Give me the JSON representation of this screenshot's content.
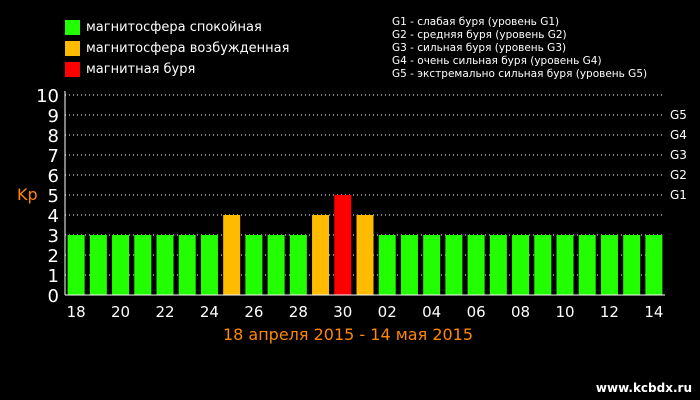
{
  "legend": {
    "items": [
      {
        "label": "магнитосфера спокойная",
        "color": "#22ff00"
      },
      {
        "label": "магнитосфера возбужденная",
        "color": "#ffbb00"
      },
      {
        "label": "магнитная буря",
        "color": "#ff0000"
      }
    ]
  },
  "storm_levels": {
    "lines": [
      "G1 - слабая буря (уровень G1)",
      "G2 - средняя буря (уровень G2)",
      "G3 - сильная буря (уровень G3)",
      "G4 - очень сильная буря (уровень G4)",
      "G5 - экстремально сильная буря (уровень G5)"
    ]
  },
  "watermark": "www.kcbdx.ru",
  "chart_data": {
    "type": "bar",
    "xlabel": "18 апреля 2015 - 14 мая 2015",
    "ylabel": "Kp",
    "ylim": [
      0,
      10
    ],
    "yticks": [
      "0",
      "1",
      "2",
      "3",
      "4",
      "5",
      "6",
      "7",
      "8",
      "9",
      "10"
    ],
    "right_ticks": [
      {
        "label": "G1",
        "value": 5
      },
      {
        "label": "G2",
        "value": 6
      },
      {
        "label": "G3",
        "value": 7
      },
      {
        "label": "G4",
        "value": 8
      },
      {
        "label": "G5",
        "value": 9
      }
    ],
    "categories": [
      "18",
      "19",
      "20",
      "21",
      "22",
      "23",
      "24",
      "25",
      "26",
      "27",
      "28",
      "29",
      "30",
      "01",
      "02",
      "03",
      "04",
      "05",
      "06",
      "07",
      "08",
      "09",
      "10",
      "11",
      "12",
      "13",
      "14"
    ],
    "x_tick_labels": [
      "18",
      "20",
      "22",
      "24",
      "26",
      "28",
      "30",
      "02",
      "04",
      "06",
      "08",
      "10",
      "12",
      "14"
    ],
    "values": [
      3,
      3,
      3,
      3,
      3,
      3,
      3,
      4,
      3,
      3,
      3,
      4,
      5,
      4,
      3,
      3,
      3,
      3,
      3,
      3,
      3,
      3,
      3,
      3,
      3,
      3,
      3
    ],
    "colors": {
      "quiet": "#22ff00",
      "active": "#ffbb00",
      "storm": "#ff0000"
    },
    "grid": true
  }
}
